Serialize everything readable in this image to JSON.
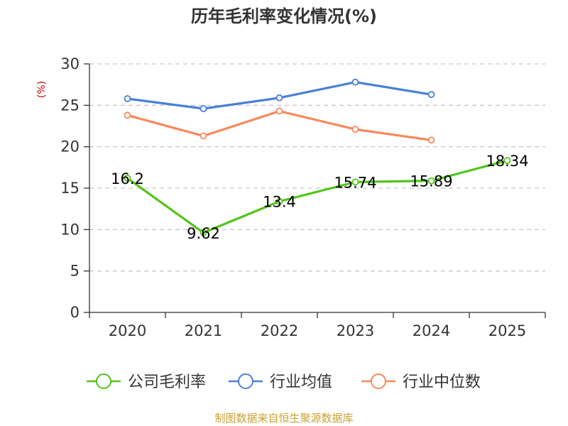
{
  "chart_data": {
    "type": "line",
    "title": "历年毛利率变化情况(%)",
    "ylabel": "(%)",
    "xlabel": "",
    "ylim": [
      0,
      30
    ],
    "yticks": [
      0,
      5,
      10,
      15,
      20,
      25,
      30
    ],
    "grid": true,
    "legend_position": "bottom",
    "categories": [
      "2020",
      "2021",
      "2022",
      "2023",
      "2024",
      "2025"
    ],
    "series": [
      {
        "name": "公司毛利率",
        "color": "#52c41a",
        "values": [
          16.2,
          9.62,
          13.4,
          15.74,
          15.89,
          18.34
        ],
        "labels": [
          "16.2",
          "9.62",
          "13.4",
          "15.74",
          "15.89",
          "18.34"
        ]
      },
      {
        "name": "行业均值",
        "color": "#4a7fd9",
        "values": [
          25.8,
          24.6,
          25.9,
          27.8,
          26.3,
          null
        ]
      },
      {
        "name": "行业中位数",
        "color": "#f7885a",
        "values": [
          23.8,
          21.3,
          24.3,
          22.1,
          20.8,
          null
        ]
      }
    ],
    "ylabel_color": "#cc0000"
  },
  "source": {
    "text": "制图数据来自恒生聚源数据库",
    "color": "#c8a032"
  }
}
